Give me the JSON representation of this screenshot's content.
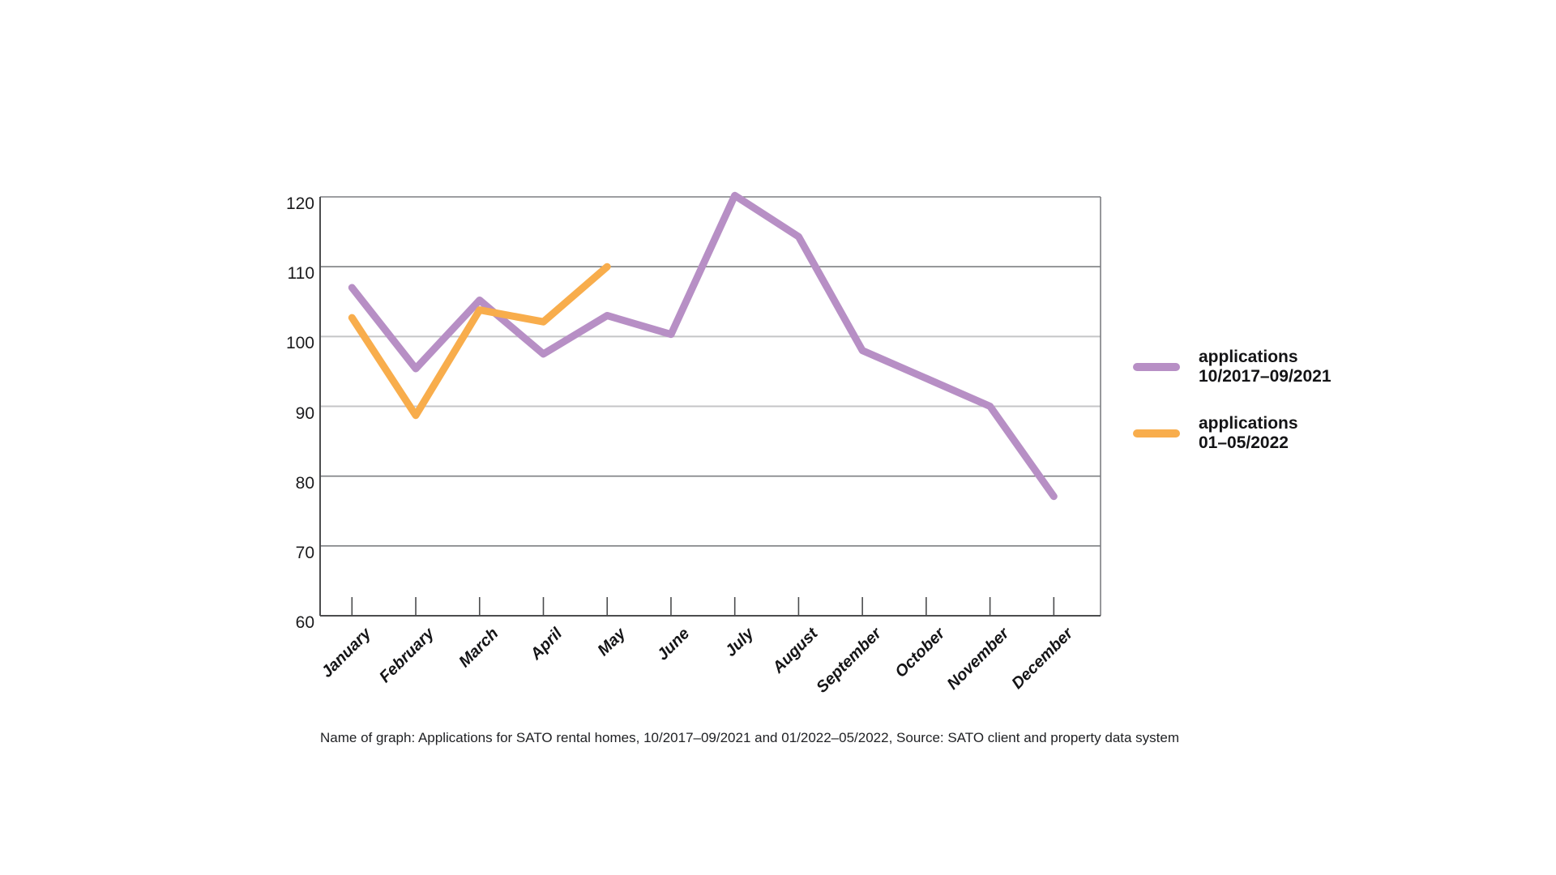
{
  "chart_data": {
    "type": "line",
    "title": "",
    "caption": "Name of graph: Applications for SATO rental homes, 10/2017–09/2021 and 01/2022–05/2022, Source: SATO client and property data system",
    "categories": [
      "January",
      "February",
      "March",
      "April",
      "May",
      "June",
      "July",
      "August",
      "September",
      "October",
      "November",
      "December"
    ],
    "series": [
      {
        "name": "applications 10/2017–09/2021",
        "legend_lines": [
          "applications",
          "10/2017–09/2021"
        ],
        "color": "#b78fc5",
        "values": [
          107,
          95.4,
          105.2,
          97.5,
          103,
          100.3,
          120.2,
          114.3,
          98,
          94,
          90,
          77.1
        ]
      },
      {
        "name": "applications 01–05/2022",
        "legend_lines": [
          "applications",
          "01–05/2022"
        ],
        "color": "#f8ad4c",
        "values": [
          102.7,
          88.7,
          103.8,
          102.1,
          110,
          null,
          null,
          null,
          null,
          null,
          null,
          null
        ]
      }
    ],
    "ylim": [
      60,
      120
    ],
    "yticks": [
      120,
      110,
      100,
      90,
      80,
      70,
      60
    ],
    "xlabel": "",
    "ylabel": "",
    "grid": "horizontal",
    "legend_position": "right-of-plot"
  }
}
